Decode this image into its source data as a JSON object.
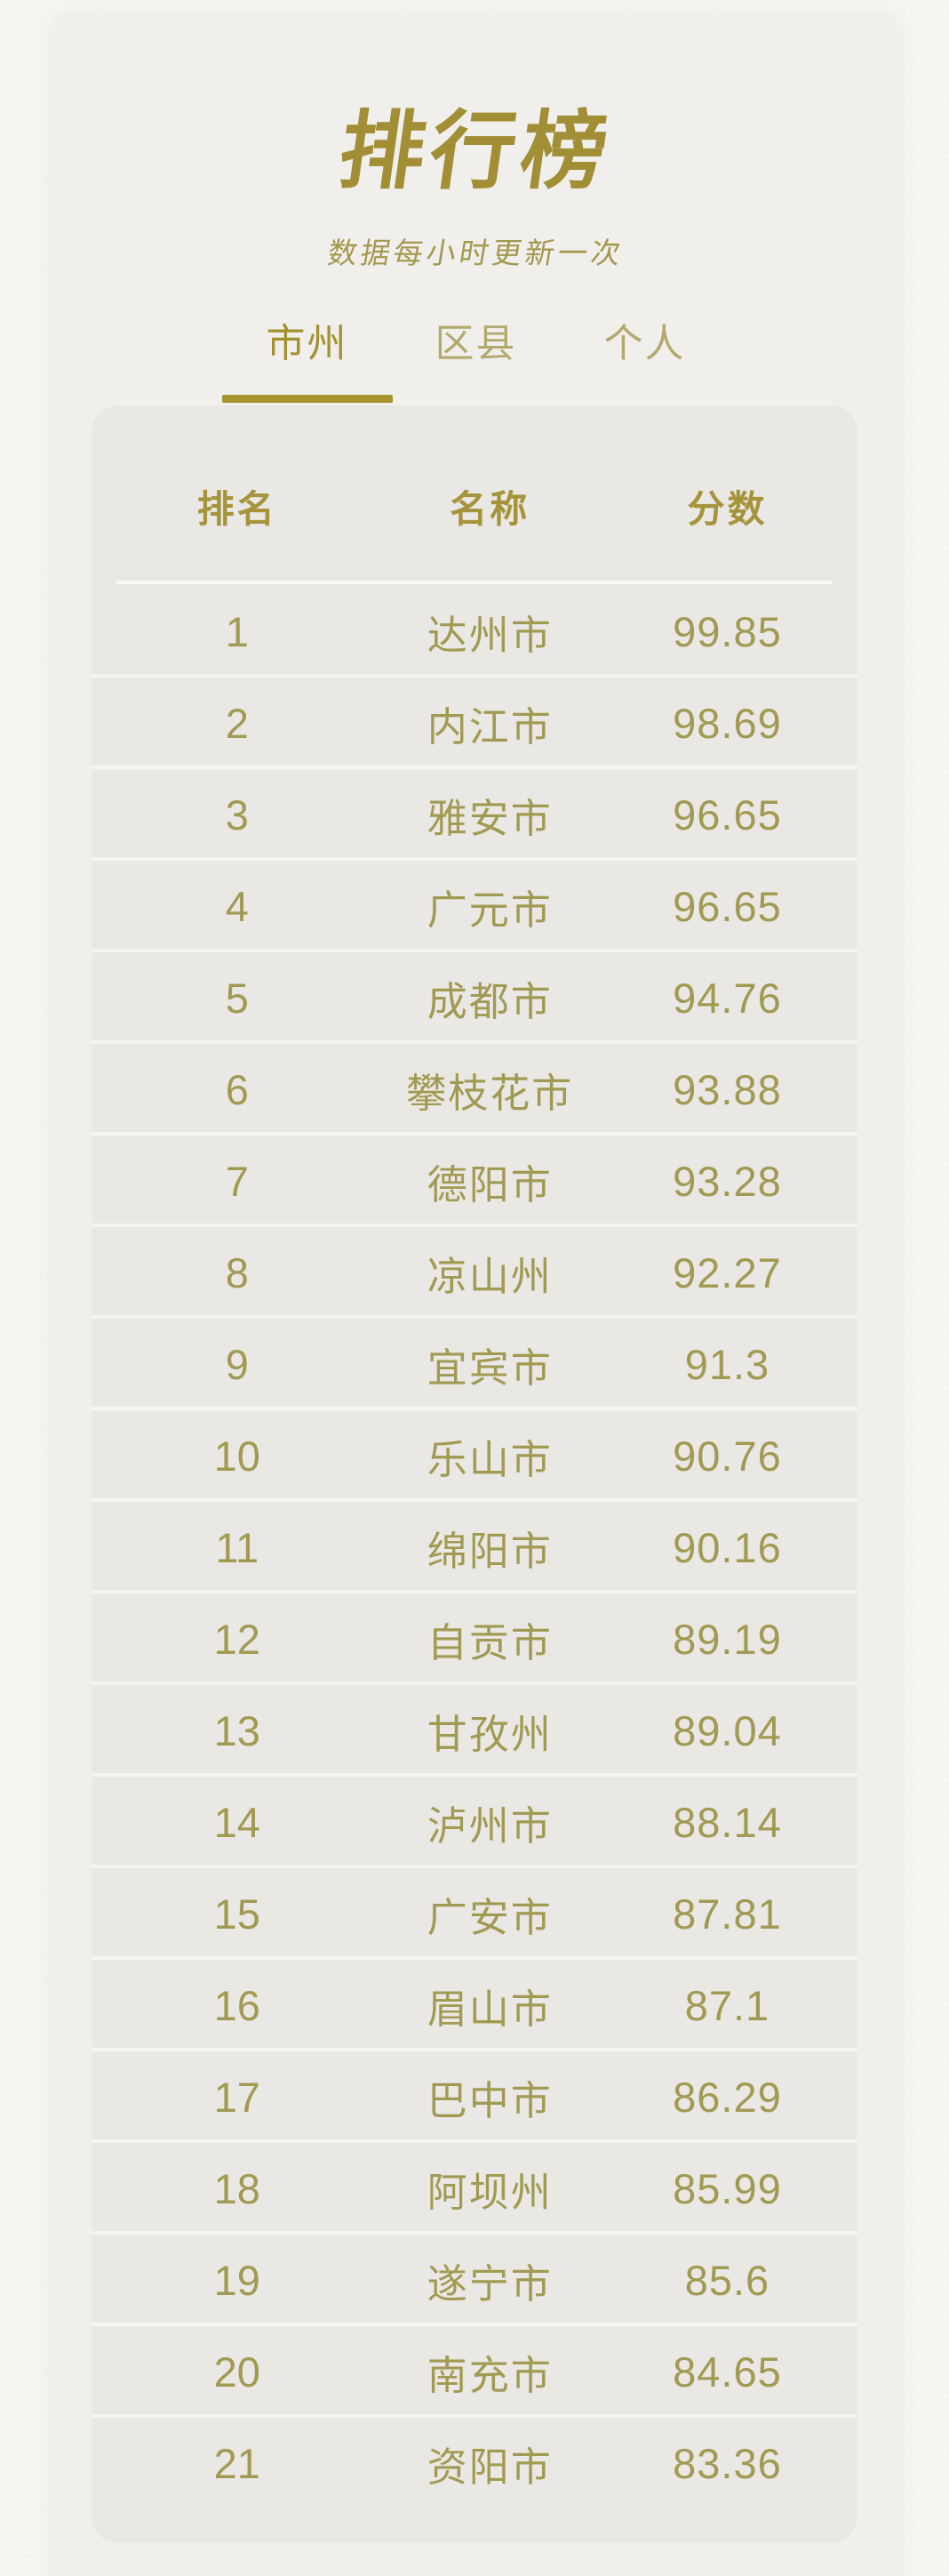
{
  "page": {
    "title": "排行榜",
    "subtitle": "数据每小时更新一次"
  },
  "tabs": [
    {
      "label": "市州",
      "active": true
    },
    {
      "label": "区县",
      "active": false
    },
    {
      "label": "个人",
      "active": false
    }
  ],
  "table": {
    "headers": [
      "排名",
      "名称",
      "分数"
    ],
    "rows": [
      {
        "rank": "1",
        "name": "达州市",
        "score": "99.85"
      },
      {
        "rank": "2",
        "name": "内江市",
        "score": "98.69"
      },
      {
        "rank": "3",
        "name": "雅安市",
        "score": "96.65"
      },
      {
        "rank": "4",
        "name": "广元市",
        "score": "96.65"
      },
      {
        "rank": "5",
        "name": "成都市",
        "score": "94.76"
      },
      {
        "rank": "6",
        "name": "攀枝花市",
        "score": "93.88"
      },
      {
        "rank": "7",
        "name": "德阳市",
        "score": "93.28"
      },
      {
        "rank": "8",
        "name": "凉山州",
        "score": "92.27"
      },
      {
        "rank": "9",
        "name": "宜宾市",
        "score": "91.3"
      },
      {
        "rank": "10",
        "name": "乐山市",
        "score": "90.76"
      },
      {
        "rank": "11",
        "name": "绵阳市",
        "score": "90.16"
      },
      {
        "rank": "12",
        "name": "自贡市",
        "score": "89.19"
      },
      {
        "rank": "13",
        "name": "甘孜州",
        "score": "89.04"
      },
      {
        "rank": "14",
        "name": "泸州市",
        "score": "88.14"
      },
      {
        "rank": "15",
        "name": "广安市",
        "score": "87.81"
      },
      {
        "rank": "16",
        "name": "眉山市",
        "score": "87.1"
      },
      {
        "rank": "17",
        "name": "巴中市",
        "score": "86.29"
      },
      {
        "rank": "18",
        "name": "阿坝州",
        "score": "85.99"
      },
      {
        "rank": "19",
        "name": "遂宁市",
        "score": "85.6"
      },
      {
        "rank": "20",
        "name": "南充市",
        "score": "84.65"
      },
      {
        "rank": "21",
        "name": "资阳市",
        "score": "83.36"
      }
    ]
  },
  "colors": {
    "page_background": "#F6F5F2",
    "card_background": "#F0EFEC",
    "panel_background": "#E9E8E4",
    "title_gold": "#A18E35",
    "subtitle_gold": "#A4984E",
    "tab_active_gold": "#A3912F",
    "tab_inactive_gold": "#B3A96C",
    "underline_gold": "#A7952D",
    "header_gold": "#A5943B",
    "row_gold": "#A29A52"
  }
}
